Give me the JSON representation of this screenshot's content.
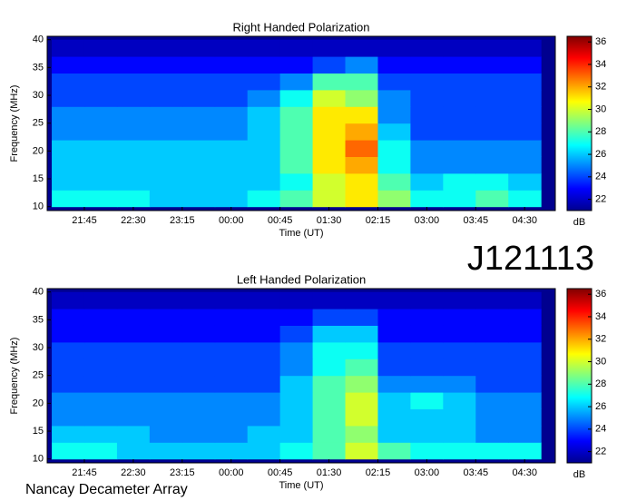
{
  "annotations": {
    "label": "J121113",
    "credit": "Nancay Decameter Array"
  },
  "chart_data": [
    {
      "type": "heatmap",
      "title": "Right Handed Polarization",
      "xlabel": "Time (UT)",
      "ylabel": "Frequency (MHz)",
      "colorbar_label": "dB",
      "xlim": [
        21.18,
        28.97
      ],
      "ylim": [
        9.3,
        40.6
      ],
      "clim": [
        21,
        36.5
      ],
      "xticks": [
        {
          "value": 21.75,
          "label": "21:45"
        },
        {
          "value": 22.5,
          "label": "22:30"
        },
        {
          "value": 23.25,
          "label": "23:15"
        },
        {
          "value": 24,
          "label": "00:00"
        },
        {
          "value": 24.75,
          "label": "00:45"
        },
        {
          "value": 25.5,
          "label": "01:30"
        },
        {
          "value": 26.25,
          "label": "02:15"
        },
        {
          "value": 27,
          "label": "03:00"
        },
        {
          "value": 27.75,
          "label": "03:45"
        },
        {
          "value": 28.5,
          "label": "04:30"
        }
      ],
      "yticks": [
        10,
        15,
        20,
        25,
        30,
        35,
        40
      ],
      "cticks": [
        22,
        24,
        26,
        28,
        30,
        32,
        34,
        36
      ],
      "xbins": [
        21.25,
        21.75,
        22.25,
        22.75,
        23.25,
        23.75,
        24.25,
        24.75,
        25.25,
        25.75,
        26.25,
        26.75,
        27.25,
        27.75,
        28.25,
        28.75
      ],
      "ybins": [
        10,
        13,
        16,
        19,
        22,
        25,
        28,
        31,
        34,
        37,
        40
      ],
      "z": [
        [
          27,
          27,
          27,
          26,
          26,
          26,
          27,
          28,
          30,
          31,
          29,
          27,
          27,
          28,
          27
        ],
        [
          26,
          26,
          26,
          26,
          26,
          26,
          26,
          27,
          30,
          31,
          28,
          26,
          27,
          27,
          26
        ],
        [
          26,
          26,
          26,
          26,
          26,
          26,
          26,
          28,
          31,
          32,
          27,
          25,
          25,
          25,
          25
        ],
        [
          26,
          26,
          26,
          26,
          26,
          26,
          26,
          28,
          31,
          33,
          27,
          25,
          25,
          25,
          25
        ],
        [
          25,
          25,
          25,
          25,
          25,
          25,
          26,
          28,
          31,
          32,
          26,
          24,
          24,
          24,
          24
        ],
        [
          25,
          25,
          25,
          25,
          25,
          25,
          26,
          28,
          31,
          31,
          25,
          24,
          24,
          24,
          24
        ],
        [
          24,
          24,
          24,
          24,
          24,
          24,
          25,
          27,
          30,
          29,
          25,
          24,
          24,
          24,
          24
        ],
        [
          24,
          24,
          24,
          24,
          24,
          24,
          24,
          25,
          28,
          28,
          24,
          24,
          24,
          24,
          24
        ],
        [
          23,
          23,
          23,
          23,
          23,
          23,
          23,
          23,
          24,
          25,
          23,
          23,
          23,
          23,
          23
        ],
        [
          22,
          22,
          22,
          22,
          22,
          22,
          22,
          22,
          22,
          22,
          22,
          22,
          22,
          22,
          22
        ]
      ]
    },
    {
      "type": "heatmap",
      "title": "Left Handed Polarization",
      "xlabel": "Time (UT)",
      "ylabel": "Frequency (MHz)",
      "colorbar_label": "dB",
      "xlim": [
        21.18,
        28.97
      ],
      "ylim": [
        9.3,
        40.6
      ],
      "clim": [
        21,
        36.5
      ],
      "xticks": [
        {
          "value": 21.75,
          "label": "21:45"
        },
        {
          "value": 22.5,
          "label": "22:30"
        },
        {
          "value": 23.25,
          "label": "23:15"
        },
        {
          "value": 24,
          "label": "00:00"
        },
        {
          "value": 24.75,
          "label": "00:45"
        },
        {
          "value": 25.5,
          "label": "01:30"
        },
        {
          "value": 26.25,
          "label": "02:15"
        },
        {
          "value": 27,
          "label": "03:00"
        },
        {
          "value": 27.75,
          "label": "03:45"
        },
        {
          "value": 28.5,
          "label": "04:30"
        }
      ],
      "yticks": [
        10,
        15,
        20,
        25,
        30,
        35,
        40
      ],
      "cticks": [
        22,
        24,
        26,
        28,
        30,
        32,
        34,
        36
      ],
      "xbins": [
        21.25,
        21.75,
        22.25,
        22.75,
        23.25,
        23.75,
        24.25,
        24.75,
        25.25,
        25.75,
        26.25,
        26.75,
        27.25,
        27.75,
        28.25,
        28.75
      ],
      "ybins": [
        10,
        13,
        16,
        19,
        22,
        25,
        28,
        31,
        34,
        37,
        40
      ],
      "z": [
        [
          27,
          27,
          26,
          26,
          26,
          26,
          26,
          27,
          28,
          30,
          28,
          27,
          27,
          27,
          27
        ],
        [
          26,
          26,
          26,
          25,
          25,
          25,
          26,
          26,
          28,
          29,
          26,
          26,
          26,
          25,
          25
        ],
        [
          25,
          25,
          25,
          25,
          25,
          25,
          25,
          26,
          28,
          30,
          26,
          26,
          26,
          25,
          25
        ],
        [
          25,
          25,
          25,
          25,
          25,
          25,
          25,
          26,
          28,
          30,
          26,
          27,
          26,
          25,
          25
        ],
        [
          24,
          24,
          24,
          24,
          24,
          24,
          24,
          26,
          28,
          29,
          25,
          25,
          25,
          24,
          24
        ],
        [
          24,
          24,
          24,
          24,
          24,
          24,
          24,
          25,
          27,
          28,
          24,
          24,
          24,
          24,
          24
        ],
        [
          24,
          24,
          24,
          24,
          24,
          24,
          24,
          25,
          27,
          27,
          24,
          24,
          24,
          24,
          24
        ],
        [
          23,
          23,
          23,
          23,
          23,
          23,
          23,
          24,
          26,
          26,
          23,
          23,
          23,
          23,
          23
        ],
        [
          23,
          23,
          23,
          23,
          23,
          23,
          23,
          23,
          24,
          24,
          23,
          23,
          23,
          23,
          23
        ],
        [
          22,
          22,
          22,
          22,
          22,
          22,
          22,
          22,
          22,
          22,
          22,
          22,
          22,
          22,
          22
        ]
      ]
    }
  ]
}
